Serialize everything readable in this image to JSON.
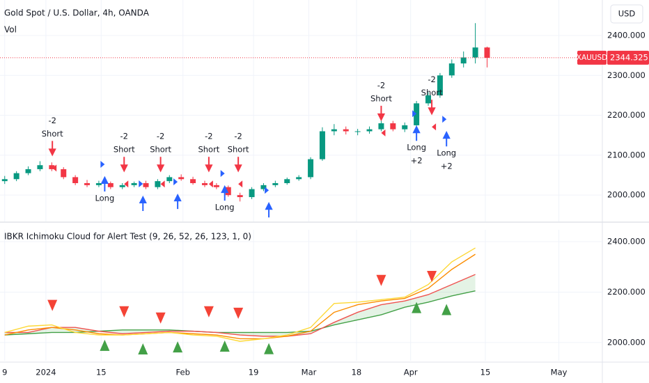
{
  "chart_data": [
    {
      "type": "candlestick",
      "title": "Gold Spot / U.S. Dollar, 4h, OANDA",
      "subtitle": "Vol",
      "currency": "USD",
      "symbol": "XAUUSD",
      "last_price": 2344.325,
      "up_color": "#089981",
      "down_color": "#f23645",
      "xlim": [
        -7.8,
        94
      ],
      "ylim": [
        1934,
        2489
      ],
      "yticks": [
        {
          "value": 2000,
          "label": "2000.000"
        },
        {
          "value": 2100,
          "label": "2100.000"
        },
        {
          "value": 2200,
          "label": "2200.000"
        },
        {
          "value": 2300,
          "label": "2300.000"
        },
        {
          "value": 2400,
          "label": "2400.000"
        }
      ],
      "x": [
        -7,
        -5,
        -3,
        -1,
        1,
        3,
        5,
        7,
        9,
        11,
        13,
        15,
        17,
        19,
        21,
        23,
        25,
        27,
        29,
        31,
        33,
        35,
        37,
        39,
        41,
        43,
        45,
        47,
        49,
        51,
        53,
        55,
        57,
        59,
        61,
        63,
        65,
        67,
        69,
        71,
        73,
        75
      ],
      "open": [
        2035,
        2040,
        2055,
        2065,
        2075,
        2065,
        2045,
        2030,
        2025,
        2030,
        2020,
        2025,
        2030,
        2020,
        2035,
        2045,
        2040,
        2030,
        2025,
        2020,
        2000,
        1995,
        2015,
        2025,
        2030,
        2040,
        2045,
        2090,
        2160,
        2165,
        2160,
        2160,
        2165,
        2180,
        2165,
        2175,
        2230,
        2250,
        2300,
        2330,
        2345,
        2370
      ],
      "high": [
        2048,
        2060,
        2072,
        2085,
        2082,
        2070,
        2050,
        2038,
        2036,
        2034,
        2030,
        2034,
        2036,
        2040,
        2050,
        2052,
        2046,
        2036,
        2030,
        2024,
        2006,
        2020,
        2030,
        2036,
        2044,
        2050,
        2095,
        2170,
        2178,
        2172,
        2166,
        2172,
        2222,
        2186,
        2182,
        2236,
        2258,
        2306,
        2340,
        2360,
        2431,
        2372
      ],
      "low": [
        2028,
        2035,
        2050,
        2060,
        2060,
        2040,
        2025,
        2020,
        2020,
        2015,
        2015,
        2020,
        2015,
        2015,
        2030,
        2036,
        2026,
        2020,
        2015,
        1996,
        1984,
        1990,
        2010,
        2020,
        2026,
        2036,
        2040,
        2086,
        2150,
        2152,
        2150,
        2154,
        2160,
        2160,
        2158,
        2170,
        2224,
        2244,
        2294,
        2320,
        2330,
        2320
      ],
      "close": [
        2040,
        2055,
        2065,
        2075,
        2065,
        2045,
        2030,
        2025,
        2030,
        2020,
        2025,
        2030,
        2020,
        2035,
        2045,
        2040,
        2030,
        2025,
        2020,
        2000,
        1995,
        2015,
        2025,
        2030,
        2040,
        2045,
        2090,
        2160,
        2165,
        2160,
        2160,
        2165,
        2180,
        2165,
        2175,
        2230,
        2250,
        2300,
        2330,
        2345,
        2370,
        2344
      ],
      "short_signals": [
        {
          "x": 1.1,
          "y": 2101,
          "text": [
            "-2",
            "Short"
          ]
        },
        {
          "x": 13.3,
          "y": 2061,
          "text": [
            "-2",
            "Short"
          ]
        },
        {
          "x": 19.5,
          "y": 2061,
          "text": [
            "-2",
            "Short"
          ]
        },
        {
          "x": 27.7,
          "y": 2061,
          "text": [
            "-2",
            "Short"
          ]
        },
        {
          "x": 32.7,
          "y": 2061,
          "text": [
            "-2",
            "Short"
          ]
        },
        {
          "x": 57,
          "y": 2189,
          "text": [
            "-2",
            "Short"
          ]
        },
        {
          "x": 65.6,
          "y": 2204,
          "text": [
            "-2",
            "Short"
          ]
        }
      ],
      "long_signals": [
        {
          "x": 10,
          "y": 2044,
          "text": [
            "Long"
          ]
        },
        {
          "x": 16.5,
          "y": 1995
        },
        {
          "x": 22.4,
          "y": 2000
        },
        {
          "x": 30.4,
          "y": 2021,
          "text": [
            "Long"
          ]
        },
        {
          "x": 37.9,
          "y": 1979
        },
        {
          "x": 63,
          "y": 2171,
          "text": [
            "Long",
            "+2"
          ]
        },
        {
          "x": 68.1,
          "y": 2157,
          "text": [
            "Long",
            "+2"
          ]
        }
      ]
    },
    {
      "type": "line",
      "title": "IBKR Ichimoku  Cloud for Alert Test (9, 26, 52, 26, 123, 1, 0)",
      "xlim": [
        -7.8,
        94
      ],
      "ylim": [
        1928,
        2447
      ],
      "yticks": [
        {
          "value": 2000,
          "label": "2000.000"
        },
        {
          "value": 2200,
          "label": "2200.000"
        },
        {
          "value": 2400,
          "label": "2400.000"
        }
      ],
      "xticks": [
        {
          "value": -7,
          "label": "9"
        },
        {
          "value": 0,
          "label": "2024"
        },
        {
          "value": 9.4,
          "label": "15"
        },
        {
          "value": 23.3,
          "label": "Feb"
        },
        {
          "value": 35.3,
          "label": "19"
        },
        {
          "value": 44.7,
          "label": "Mar"
        },
        {
          "value": 52.8,
          "label": "18"
        },
        {
          "value": 62,
          "label": "Apr"
        },
        {
          "value": 74.7,
          "label": "15"
        },
        {
          "value": 87.2,
          "label": "May"
        }
      ],
      "x": [
        -7,
        -3,
        1,
        5,
        9,
        13,
        17,
        21,
        25,
        29,
        33,
        37,
        41,
        45,
        49,
        53,
        57,
        61,
        65,
        69,
        73
      ],
      "series": [
        {
          "color": "#43a047",
          "values": [
            2030,
            2035,
            2040,
            2040,
            2045,
            2050,
            2050,
            2050,
            2045,
            2040,
            2040,
            2040,
            2040,
            2045,
            2070,
            2090,
            2110,
            2140,
            2160,
            2185,
            2205
          ]
        },
        {
          "color": "#ef5350",
          "values": [
            2040,
            2040,
            2060,
            2060,
            2045,
            2035,
            2040,
            2045,
            2045,
            2040,
            2030,
            2025,
            2025,
            2035,
            2080,
            2120,
            2150,
            2165,
            2190,
            2230,
            2270
          ]
        },
        {
          "color": "#fb8c00",
          "values": [
            2030,
            2050,
            2060,
            2050,
            2035,
            2030,
            2035,
            2040,
            2035,
            2030,
            2015,
            2015,
            2025,
            2045,
            2120,
            2150,
            2165,
            2175,
            2215,
            2290,
            2350
          ]
        },
        {
          "color": "#fdd835",
          "values": [
            2040,
            2065,
            2070,
            2040,
            2030,
            2030,
            2035,
            2040,
            2030,
            2025,
            2005,
            2015,
            2030,
            2060,
            2155,
            2160,
            2170,
            2180,
            2230,
            2320,
            2375
          ]
        }
      ],
      "cloud_color": "rgba(76,175,80,0.15)",
      "sell_markers": {
        "color": "#f44336",
        "x": [
          1.1,
          13.3,
          19.5,
          27.7,
          32.7,
          57,
          65.6
        ],
        "y": [
          2147,
          2122,
          2097,
          2122,
          2116,
          2246,
          2262
        ]
      },
      "buy_markers": {
        "color": "#43a047",
        "x": [
          10,
          16.5,
          22.4,
          30.4,
          37.9,
          63,
          68.1
        ],
        "y": [
          1989,
          1975,
          1983,
          1986,
          1976,
          2139,
          2131
        ]
      }
    }
  ]
}
